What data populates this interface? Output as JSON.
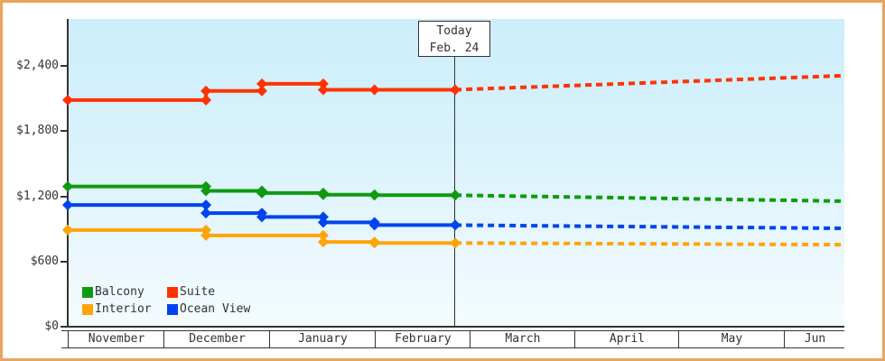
{
  "frame": {
    "border_color": "#e8a55c",
    "axis_color": "#333333",
    "plot_gradient_top": "#cdeefb",
    "plot_gradient_bottom": "#f4fcfe"
  },
  "chart_data": {
    "type": "line",
    "description": "Cruise cabin price history (solid lines with diamond markers) and forecast (dashed lines) by cabin category, November through June",
    "x_axis": {
      "labels": [
        "November",
        "December",
        "January",
        "February",
        "March",
        "April",
        "May",
        "Jun"
      ],
      "boundaries_frac": [
        0,
        0.1233,
        0.2593,
        0.3953,
        0.5174,
        0.6523,
        0.786,
        0.9221,
        1.0
      ]
    },
    "y_axis": {
      "tick_values": [
        0,
        600,
        1200,
        1800,
        2400
      ],
      "tick_labels": [
        "$0",
        "$600",
        "$1,200",
        "$1,800",
        "$2,400"
      ],
      "min": 0,
      "max_plotted": 2400,
      "grid": "off"
    },
    "today_marker": {
      "line1": "Today",
      "line2": "Feb. 24",
      "x_frac": 0.499
    },
    "legend_position": "inside-bottom-left",
    "series": [
      {
        "name": "Suite",
        "color": "#ff3300",
        "points": [
          [
            0.0,
            2085
          ],
          [
            0.178,
            2085
          ],
          [
            0.178,
            2170
          ],
          [
            0.25,
            2170
          ],
          [
            0.25,
            2235
          ],
          [
            0.329,
            2235
          ],
          [
            0.329,
            2180
          ],
          [
            0.395,
            2180
          ],
          [
            0.499,
            2180
          ]
        ],
        "forecast": [
          [
            0.499,
            2180
          ],
          [
            1.0,
            2310
          ]
        ]
      },
      {
        "name": "Balcony",
        "color": "#0f9a0f",
        "points": [
          [
            0.0,
            1290
          ],
          [
            0.178,
            1290
          ],
          [
            0.178,
            1250
          ],
          [
            0.25,
            1250
          ],
          [
            0.25,
            1230
          ],
          [
            0.329,
            1230
          ],
          [
            0.329,
            1215
          ],
          [
            0.395,
            1215
          ],
          [
            0.395,
            1210
          ],
          [
            0.499,
            1210
          ]
        ],
        "forecast": [
          [
            0.499,
            1210
          ],
          [
            1.0,
            1155
          ]
        ]
      },
      {
        "name": "Ocean View",
        "color": "#0044ee",
        "points": [
          [
            0.0,
            1120
          ],
          [
            0.178,
            1120
          ],
          [
            0.178,
            1045
          ],
          [
            0.25,
            1045
          ],
          [
            0.25,
            1010
          ],
          [
            0.329,
            1010
          ],
          [
            0.329,
            960
          ],
          [
            0.395,
            960
          ],
          [
            0.395,
            935
          ],
          [
            0.499,
            935
          ]
        ],
        "forecast": [
          [
            0.499,
            935
          ],
          [
            1.0,
            905
          ]
        ]
      },
      {
        "name": "Interior",
        "color": "#ffa408",
        "points": [
          [
            0.0,
            890
          ],
          [
            0.178,
            890
          ],
          [
            0.178,
            840
          ],
          [
            0.329,
            840
          ],
          [
            0.329,
            780
          ],
          [
            0.395,
            780
          ],
          [
            0.395,
            770
          ],
          [
            0.499,
            770
          ]
        ],
        "forecast": [
          [
            0.499,
            770
          ],
          [
            1.0,
            755
          ]
        ]
      }
    ]
  },
  "legend_items": [
    {
      "label": "Balcony",
      "color": "#0f9a0f"
    },
    {
      "label": "Suite",
      "color": "#ff3300"
    },
    {
      "label": "Interior",
      "color": "#ffa408"
    },
    {
      "label": "Ocean View",
      "color": "#0044ee"
    }
  ]
}
